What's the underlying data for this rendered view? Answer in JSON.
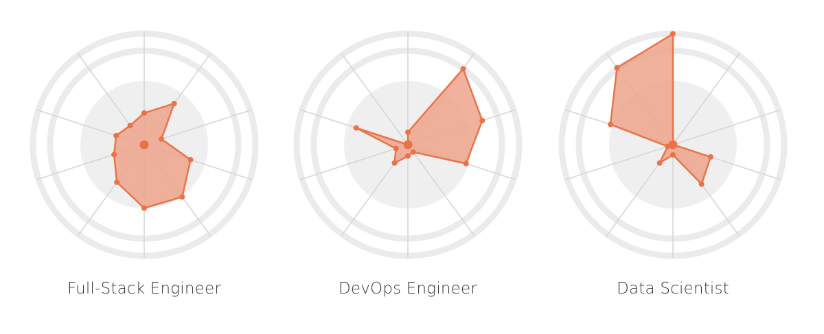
{
  "colors": {
    "accent_stroke": "#e8734a",
    "accent_fill": "#eda58b",
    "ring": "#ebebeb",
    "inner_disc": "#efefef",
    "spokes": "#d6d6d6",
    "label": "#333333"
  },
  "chart_data": [
    {
      "type": "radar",
      "title": "Full-Stack Engineer",
      "axes_count": 10,
      "max": 1,
      "grid": true,
      "values": [
        0.28,
        0.45,
        0.16,
        0.43,
        0.57,
        0.56,
        0.41,
        0.28,
        0.26,
        0.21
      ]
    },
    {
      "type": "radar",
      "title": "DevOps Engineer",
      "axes_count": 10,
      "max": 1,
      "grid": true,
      "values": [
        0.11,
        0.83,
        0.69,
        0.54,
        0.08,
        0.1,
        0.2,
        0.11,
        0.48,
        0.0
      ]
    },
    {
      "type": "radar",
      "title": "Data Scientist",
      "axes_count": 10,
      "max": 1,
      "grid": true,
      "values": [
        0.98,
        0.0,
        0.0,
        0.35,
        0.43,
        0.09,
        0.2,
        0.05,
        0.58,
        0.84
      ]
    }
  ]
}
